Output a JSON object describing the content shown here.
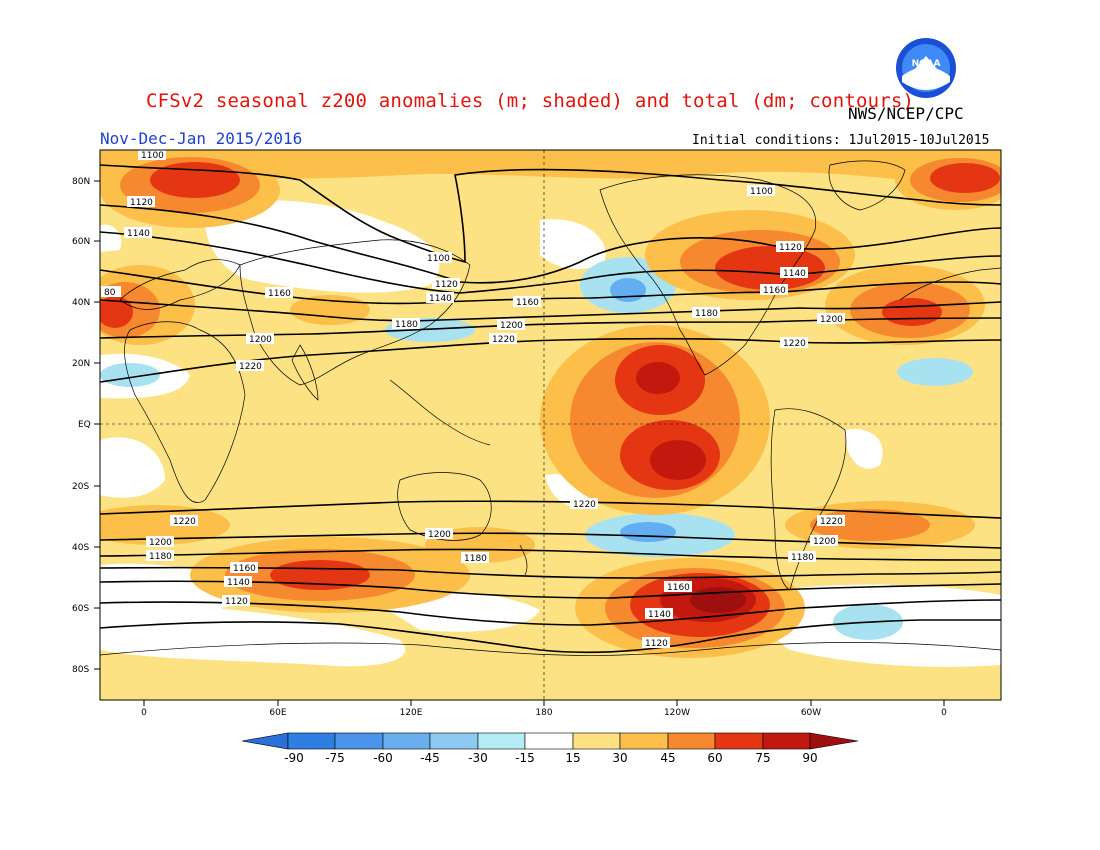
{
  "header": {
    "title": "CFSv2 seasonal z200 anomalies (m; shaded) and total (dm; contours)",
    "agency": "NWS/NCEP/CPC",
    "season": "Nov-Dec-Jan 2015/2016",
    "initial_conditions": "Initial conditions: 1Jul2015-10Jul2015",
    "logo_text": "NOAA",
    "logo_icon": "noaa-logo-icon"
  },
  "map": {
    "lat_labels": [
      "80N",
      "60N",
      "40N",
      "20N",
      "EQ",
      "20S",
      "40S",
      "60S",
      "80S"
    ],
    "lon_labels": [
      "0",
      "60E",
      "120E",
      "180",
      "120W",
      "60W",
      "0"
    ],
    "contour_labels": [
      "1100",
      "1120",
      "1140",
      "1160",
      "1180",
      "1200",
      "1220",
      "80"
    ],
    "colors": {
      "light_blue": "#a8e2f0",
      "mid_blue": "#62aef0",
      "yellow": "#fde283",
      "gold": "#fbbf4a",
      "orange": "#f6892f",
      "red": "#e53614",
      "dark_red": "#c2180d",
      "maroon": "#9e0f0f"
    }
  },
  "colorbar": {
    "labels": [
      "-90",
      "-75",
      "-60",
      "-45",
      "-30",
      "-15",
      "15",
      "30",
      "45",
      "60",
      "75",
      "90"
    ],
    "colors": [
      "#2d6fd8",
      "#2f7fe3",
      "#4a94ea",
      "#6aaef0",
      "#8ec9f2",
      "#b6ecf6",
      "#ffffff",
      "#fde283",
      "#fbbf4a",
      "#f6892f",
      "#e53614",
      "#c2180d",
      "#9e0f0f"
    ]
  }
}
